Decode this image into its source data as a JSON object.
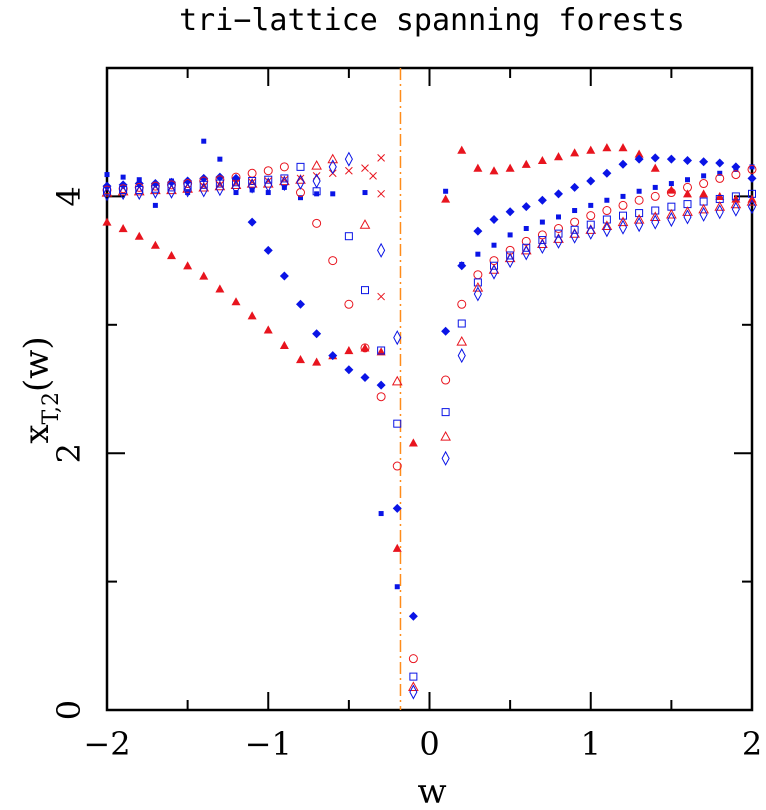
{
  "chart_data": {
    "type": "scatter",
    "title": "tri−lattice spanning forests",
    "xlabel": "w",
    "ylabel": {
      "main": "x",
      "sub": "T,2",
      "tail": "(w)"
    },
    "xlim": [
      -2,
      2
    ],
    "ylim": [
      0,
      5
    ],
    "xticks": [
      {
        "v": -2,
        "label": "−2"
      },
      {
        "v": -1,
        "label": "−1"
      },
      {
        "v": 0,
        "label": "0"
      },
      {
        "v": 1,
        "label": "1"
      },
      {
        "v": 2,
        "label": "2"
      }
    ],
    "yticks": [
      {
        "v": 0,
        "label": "0"
      },
      {
        "v": 2,
        "label": "2"
      },
      {
        "v": 4,
        "label": "4"
      }
    ],
    "vline": {
      "x": -0.18,
      "color": "#ff8c1a",
      "style": "dash-dot"
    },
    "colors": {
      "red": "#e8141e",
      "blue": "#0a14e6",
      "orange": "#ff8c1a"
    },
    "series": [
      {
        "marker": "filled-triangle",
        "color": "#e8141e",
        "points": [
          [
            -2.0,
            3.8
          ],
          [
            -1.9,
            3.75
          ],
          [
            -1.8,
            3.69
          ],
          [
            -1.7,
            3.62
          ],
          [
            -1.6,
            3.54
          ],
          [
            -1.5,
            3.46
          ],
          [
            -1.4,
            3.38
          ],
          [
            -1.3,
            3.28
          ],
          [
            -1.2,
            3.18
          ],
          [
            -1.1,
            3.07
          ],
          [
            -1.0,
            2.96
          ],
          [
            -0.9,
            2.84
          ],
          [
            -0.8,
            2.73
          ],
          [
            -0.7,
            2.71
          ],
          [
            -0.6,
            2.76
          ],
          [
            -0.5,
            2.8
          ],
          [
            -0.4,
            2.82
          ],
          [
            -0.3,
            2.79
          ],
          [
            -0.2,
            1.26
          ],
          [
            -0.1,
            2.08
          ],
          [
            0.1,
            3.98
          ],
          [
            0.2,
            4.36
          ],
          [
            0.3,
            4.22
          ],
          [
            0.4,
            4.2
          ],
          [
            0.5,
            4.22
          ],
          [
            0.6,
            4.25
          ],
          [
            0.7,
            4.28
          ],
          [
            0.8,
            4.31
          ],
          [
            0.9,
            4.34
          ],
          [
            1.0,
            4.36
          ],
          [
            1.1,
            4.38
          ],
          [
            1.2,
            4.38
          ],
          [
            1.3,
            4.33
          ],
          [
            1.4,
            4.22
          ],
          [
            1.5,
            4.05
          ],
          [
            1.6,
            4.02
          ],
          [
            1.7,
            4.02
          ],
          [
            1.8,
            4.0
          ],
          [
            1.9,
            3.98
          ],
          [
            2.0,
            3.98
          ]
        ]
      },
      {
        "marker": "filled-diamond",
        "color": "#0a14e6",
        "points": [
          [
            -2.0,
            4.08
          ],
          [
            -1.9,
            4.09
          ],
          [
            -1.8,
            4.1
          ],
          [
            -1.7,
            4.1
          ],
          [
            -1.6,
            4.11
          ],
          [
            -1.5,
            4.12
          ],
          [
            -1.4,
            4.14
          ],
          [
            -1.3,
            4.15
          ],
          [
            -1.2,
            4.14
          ],
          [
            -1.1,
            3.8
          ],
          [
            -1.0,
            3.58
          ],
          [
            -0.9,
            3.38
          ],
          [
            -0.8,
            3.16
          ],
          [
            -0.7,
            2.93
          ],
          [
            -0.6,
            2.76
          ],
          [
            -0.5,
            2.65
          ],
          [
            -0.4,
            2.59
          ],
          [
            -0.3,
            2.53
          ],
          [
            -0.2,
            1.57
          ],
          [
            -0.1,
            0.73
          ],
          [
            0.1,
            2.95
          ],
          [
            0.2,
            3.46
          ],
          [
            0.3,
            3.73
          ],
          [
            0.4,
            3.82
          ],
          [
            0.5,
            3.88
          ],
          [
            0.6,
            3.92
          ],
          [
            0.7,
            3.97
          ],
          [
            0.8,
            4.02
          ],
          [
            0.9,
            4.07
          ],
          [
            1.0,
            4.12
          ],
          [
            1.1,
            4.18
          ],
          [
            1.2,
            4.25
          ],
          [
            1.3,
            4.29
          ],
          [
            1.4,
            4.3
          ],
          [
            1.5,
            4.29
          ],
          [
            1.6,
            4.28
          ],
          [
            1.7,
            4.27
          ],
          [
            1.8,
            4.26
          ],
          [
            1.9,
            4.23
          ],
          [
            2.0,
            4.14
          ]
        ]
      },
      {
        "marker": "filled-square",
        "color": "#0a14e6",
        "points": [
          [
            -2.0,
            4.17
          ],
          [
            -1.9,
            4.15
          ],
          [
            -1.8,
            4.13
          ],
          [
            -1.7,
            3.93
          ],
          [
            -1.6,
            4.12
          ],
          [
            -1.5,
            4.03
          ],
          [
            -1.4,
            4.43
          ],
          [
            -1.3,
            4.29
          ],
          [
            -1.2,
            4.03
          ],
          [
            -1.1,
            4.05
          ],
          [
            -1.0,
            4.03
          ],
          [
            -0.9,
            4.07
          ],
          [
            -0.8,
            3.99
          ],
          [
            -0.7,
            4.02
          ],
          [
            -0.6,
            4.02
          ],
          [
            -0.4,
            4.03
          ],
          [
            -0.3,
            1.53
          ],
          [
            -0.2,
            0.96
          ],
          [
            0.1,
            4.04
          ],
          [
            0.2,
            3.47
          ],
          [
            0.3,
            3.55
          ],
          [
            0.4,
            3.62
          ],
          [
            0.5,
            3.7
          ],
          [
            0.6,
            3.75
          ],
          [
            0.7,
            3.8
          ],
          [
            0.8,
            3.84
          ],
          [
            0.9,
            3.89
          ],
          [
            1.0,
            3.93
          ],
          [
            1.1,
            3.97
          ],
          [
            1.2,
            4.0
          ],
          [
            1.3,
            4.04
          ],
          [
            1.4,
            4.07
          ],
          [
            1.5,
            4.1
          ],
          [
            1.6,
            4.13
          ],
          [
            1.7,
            4.16
          ],
          [
            1.8,
            4.18
          ],
          [
            1.9,
            4.21
          ],
          [
            2.0,
            4.23
          ]
        ]
      },
      {
        "marker": "open-circle",
        "color": "#e8141e",
        "points": [
          [
            -2.0,
            4.05
          ],
          [
            -1.9,
            4.06
          ],
          [
            -1.8,
            4.07
          ],
          [
            -1.7,
            4.08
          ],
          [
            -1.6,
            4.09
          ],
          [
            -1.5,
            4.1
          ],
          [
            -1.4,
            4.12
          ],
          [
            -1.3,
            4.13
          ],
          [
            -1.2,
            4.15
          ],
          [
            -1.1,
            4.18
          ],
          [
            -1.0,
            4.2
          ],
          [
            -0.9,
            4.23
          ],
          [
            -0.8,
            4.03
          ],
          [
            -0.7,
            3.79
          ],
          [
            -0.6,
            3.5
          ],
          [
            -0.5,
            3.16
          ],
          [
            -0.4,
            2.82
          ],
          [
            -0.3,
            2.44
          ],
          [
            -0.2,
            1.9
          ],
          [
            -0.1,
            0.4
          ],
          [
            0.1,
            2.57
          ],
          [
            0.2,
            3.16
          ],
          [
            0.3,
            3.39
          ],
          [
            0.4,
            3.5
          ],
          [
            0.5,
            3.58
          ],
          [
            0.6,
            3.65
          ],
          [
            0.7,
            3.7
          ],
          [
            0.8,
            3.75
          ],
          [
            0.9,
            3.8
          ],
          [
            1.0,
            3.85
          ],
          [
            1.1,
            3.89
          ],
          [
            1.2,
            3.93
          ],
          [
            1.3,
            3.97
          ],
          [
            1.4,
            4.0
          ],
          [
            1.5,
            4.03
          ],
          [
            1.6,
            4.07
          ],
          [
            1.7,
            4.1
          ],
          [
            1.8,
            4.14
          ],
          [
            1.9,
            4.17
          ],
          [
            2.0,
            4.21
          ]
        ]
      },
      {
        "marker": "open-square",
        "color": "#0a14e6",
        "points": [
          [
            -2.0,
            4.04
          ],
          [
            -1.9,
            4.05
          ],
          [
            -1.8,
            4.05
          ],
          [
            -1.7,
            4.06
          ],
          [
            -1.6,
            4.07
          ],
          [
            -1.5,
            4.08
          ],
          [
            -1.4,
            4.09
          ],
          [
            -1.3,
            4.1
          ],
          [
            -1.2,
            4.11
          ],
          [
            -1.1,
            4.12
          ],
          [
            -1.0,
            4.13
          ],
          [
            -0.9,
            4.14
          ],
          [
            -0.8,
            4.23
          ],
          [
            -0.7,
            4.04
          ],
          [
            -0.5,
            3.69
          ],
          [
            -0.4,
            3.27
          ],
          [
            -0.3,
            2.8
          ],
          [
            -0.2,
            2.23
          ],
          [
            -0.1,
            0.26
          ],
          [
            0.1,
            2.32
          ],
          [
            0.2,
            3.01
          ],
          [
            0.3,
            3.33
          ],
          [
            0.4,
            3.46
          ],
          [
            0.5,
            3.54
          ],
          [
            0.6,
            3.6
          ],
          [
            0.7,
            3.66
          ],
          [
            0.8,
            3.71
          ],
          [
            0.9,
            3.74
          ],
          [
            1.0,
            3.78
          ],
          [
            1.1,
            3.82
          ],
          [
            1.2,
            3.85
          ],
          [
            1.3,
            3.87
          ],
          [
            1.4,
            3.89
          ],
          [
            1.5,
            3.92
          ],
          [
            1.6,
            3.94
          ],
          [
            1.7,
            3.96
          ],
          [
            1.8,
            3.98
          ],
          [
            1.9,
            4.0
          ],
          [
            2.0,
            4.02
          ]
        ]
      },
      {
        "marker": "open-triangle",
        "color": "#e8141e",
        "points": [
          [
            -2.0,
            4.03
          ],
          [
            -1.9,
            4.04
          ],
          [
            -1.8,
            4.04
          ],
          [
            -1.7,
            4.05
          ],
          [
            -1.6,
            4.05
          ],
          [
            -1.5,
            4.06
          ],
          [
            -1.4,
            4.07
          ],
          [
            -1.3,
            4.08
          ],
          [
            -1.2,
            4.09
          ],
          [
            -1.1,
            4.1
          ],
          [
            -1.0,
            4.1
          ],
          [
            -0.9,
            4.12
          ],
          [
            -0.8,
            4.13
          ],
          [
            -0.7,
            4.24
          ],
          [
            -0.6,
            4.29
          ],
          [
            -0.4,
            3.78
          ],
          [
            -0.2,
            2.56
          ],
          [
            -0.1,
            0.18
          ],
          [
            0.1,
            2.13
          ],
          [
            0.2,
            2.87
          ],
          [
            0.3,
            3.29
          ],
          [
            0.4,
            3.43
          ],
          [
            0.5,
            3.52
          ],
          [
            0.6,
            3.58
          ],
          [
            0.7,
            3.63
          ],
          [
            0.8,
            3.67
          ],
          [
            0.9,
            3.71
          ],
          [
            1.0,
            3.74
          ],
          [
            1.1,
            3.77
          ],
          [
            1.2,
            3.8
          ],
          [
            1.3,
            3.82
          ],
          [
            1.4,
            3.84
          ],
          [
            1.5,
            3.86
          ],
          [
            1.6,
            3.88
          ],
          [
            1.7,
            3.9
          ],
          [
            1.8,
            3.92
          ],
          [
            1.9,
            3.94
          ],
          [
            2.0,
            3.96
          ]
        ]
      },
      {
        "marker": "cross",
        "color": "#e8141e",
        "points": [
          [
            -1.4,
            4.08
          ],
          [
            -1.3,
            4.09
          ],
          [
            -1.2,
            4.1
          ],
          [
            -1.1,
            4.11
          ],
          [
            -1.0,
            4.12
          ],
          [
            -0.9,
            4.13
          ],
          [
            -0.8,
            4.14
          ],
          [
            -0.7,
            4.16
          ],
          [
            -0.6,
            4.18
          ],
          [
            -0.5,
            4.2
          ],
          [
            -0.4,
            4.22
          ],
          [
            -0.3,
            4.3
          ],
          [
            -0.35,
            4.16
          ],
          [
            -0.3,
            4.02
          ],
          [
            -0.3,
            3.22
          ]
        ]
      },
      {
        "marker": "open-diamond",
        "color": "#0a14e6",
        "points": [
          [
            -2.0,
            4.02
          ],
          [
            -1.9,
            4.03
          ],
          [
            -1.8,
            4.03
          ],
          [
            -1.7,
            4.04
          ],
          [
            -1.6,
            4.04
          ],
          [
            -1.5,
            4.05
          ],
          [
            -1.4,
            4.05
          ],
          [
            -1.3,
            4.06
          ],
          [
            -1.2,
            4.07
          ],
          [
            -1.1,
            4.08
          ],
          [
            -1.0,
            4.09
          ],
          [
            -0.9,
            4.1
          ],
          [
            -0.8,
            4.11
          ],
          [
            -0.7,
            4.12
          ],
          [
            -0.6,
            4.23
          ],
          [
            -0.5,
            4.29
          ],
          [
            -0.3,
            3.58
          ],
          [
            -0.2,
            2.9
          ],
          [
            -0.1,
            0.14
          ],
          [
            0.1,
            1.96
          ],
          [
            0.2,
            2.76
          ],
          [
            0.3,
            3.24
          ],
          [
            0.4,
            3.41
          ],
          [
            0.5,
            3.5
          ],
          [
            0.6,
            3.56
          ],
          [
            0.7,
            3.61
          ],
          [
            0.8,
            3.65
          ],
          [
            0.9,
            3.69
          ],
          [
            1.0,
            3.72
          ],
          [
            1.1,
            3.74
          ],
          [
            1.2,
            3.76
          ],
          [
            1.3,
            3.78
          ],
          [
            1.4,
            3.8
          ],
          [
            1.5,
            3.82
          ],
          [
            1.6,
            3.84
          ],
          [
            1.7,
            3.86
          ],
          [
            1.8,
            3.88
          ],
          [
            1.9,
            3.9
          ],
          [
            2.0,
            3.92
          ]
        ]
      }
    ]
  }
}
